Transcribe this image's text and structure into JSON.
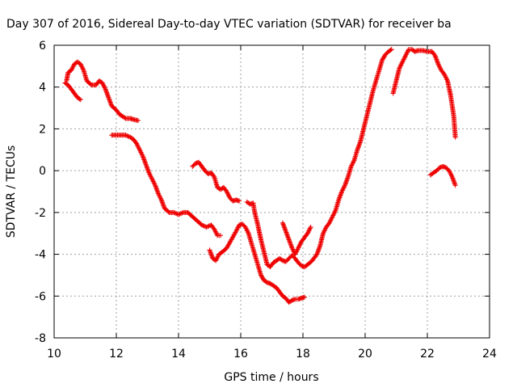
{
  "chart_data": {
    "type": "scatter",
    "title": "Day 307 of 2016, Sidereal Day-to-day VTEC variation (SDTVAR) for receiver ba",
    "xlabel": "GPS time / hours",
    "ylabel": "SDTVAR / TECUs",
    "xlim": [
      10,
      24
    ],
    "ylim": [
      -8,
      6
    ],
    "xticks": [
      "10",
      "12",
      "14",
      "16",
      "18",
      "20",
      "22",
      "24"
    ],
    "yticks": [
      "6",
      "4",
      "2",
      "0",
      "-2",
      "-4",
      "-6",
      "-8"
    ],
    "grid": true,
    "marker": "plus",
    "color": "#ee0000",
    "series": [
      {
        "name": "seg1",
        "points": [
          [
            10.4,
            4.3
          ],
          [
            10.45,
            4.7
          ],
          [
            10.55,
            4.8
          ],
          [
            10.65,
            5.1
          ],
          [
            10.75,
            5.2
          ],
          [
            10.85,
            5.1
          ],
          [
            10.95,
            4.8
          ],
          [
            11.05,
            4.3
          ],
          [
            11.2,
            4.1
          ],
          [
            11.35,
            4.1
          ],
          [
            11.45,
            4.3
          ],
          [
            11.55,
            4.2
          ],
          [
            11.65,
            3.9
          ],
          [
            11.75,
            3.5
          ],
          [
            11.85,
            3.1
          ],
          [
            12.0,
            2.9
          ],
          [
            12.1,
            2.7
          ],
          [
            12.2,
            2.6
          ],
          [
            12.3,
            2.5
          ],
          [
            12.45,
            2.5
          ],
          [
            12.55,
            2.45
          ],
          [
            12.7,
            2.4
          ]
        ]
      },
      {
        "name": "seg2",
        "points": [
          [
            10.35,
            4.2
          ],
          [
            10.45,
            4.1
          ],
          [
            10.55,
            3.9
          ],
          [
            10.65,
            3.7
          ],
          [
            10.75,
            3.5
          ],
          [
            10.85,
            3.4
          ]
        ]
      },
      {
        "name": "seg3",
        "points": [
          [
            11.85,
            1.7
          ],
          [
            12.0,
            1.7
          ],
          [
            12.15,
            1.7
          ],
          [
            12.3,
            1.7
          ],
          [
            12.45,
            1.6
          ],
          [
            12.55,
            1.5
          ],
          [
            12.65,
            1.3
          ],
          [
            12.75,
            1.0
          ],
          [
            12.85,
            0.7
          ],
          [
            12.95,
            0.3
          ],
          [
            13.05,
            -0.1
          ],
          [
            13.15,
            -0.4
          ],
          [
            13.25,
            -0.7
          ],
          [
            13.35,
            -1.1
          ],
          [
            13.45,
            -1.4
          ],
          [
            13.55,
            -1.8
          ],
          [
            13.7,
            -2.0
          ],
          [
            13.85,
            -2.0
          ],
          [
            14.0,
            -2.1
          ],
          [
            14.15,
            -2.0
          ],
          [
            14.3,
            -2.0
          ],
          [
            14.45,
            -2.2
          ],
          [
            14.6,
            -2.4
          ],
          [
            14.75,
            -2.6
          ],
          [
            14.9,
            -2.7
          ],
          [
            15.05,
            -2.6
          ],
          [
            15.15,
            -2.8
          ],
          [
            15.25,
            -3.1
          ],
          [
            15.35,
            -3.1
          ]
        ]
      },
      {
        "name": "seg4",
        "points": [
          [
            14.45,
            0.2
          ],
          [
            14.55,
            0.35
          ],
          [
            14.65,
            0.4
          ],
          [
            14.75,
            0.2
          ],
          [
            14.85,
            0.0
          ],
          [
            14.95,
            -0.15
          ],
          [
            15.05,
            -0.1
          ],
          [
            15.15,
            -0.3
          ],
          [
            15.25,
            -0.8
          ],
          [
            15.35,
            -0.9
          ],
          [
            15.45,
            -0.8
          ],
          [
            15.55,
            -1.0
          ],
          [
            15.65,
            -1.3
          ],
          [
            15.75,
            -1.45
          ],
          [
            15.85,
            -1.4
          ],
          [
            15.95,
            -1.45
          ]
        ]
      },
      {
        "name": "seg5",
        "points": [
          [
            15.0,
            -3.8
          ],
          [
            15.1,
            -4.2
          ],
          [
            15.2,
            -4.3
          ],
          [
            15.3,
            -4.0
          ],
          [
            15.4,
            -3.9
          ],
          [
            15.55,
            -3.7
          ],
          [
            15.7,
            -3.3
          ],
          [
            15.85,
            -2.9
          ],
          [
            15.95,
            -2.6
          ],
          [
            16.05,
            -2.55
          ],
          [
            16.15,
            -2.7
          ],
          [
            16.25,
            -3.0
          ],
          [
            16.35,
            -3.5
          ],
          [
            16.45,
            -4.0
          ],
          [
            16.55,
            -4.5
          ],
          [
            16.65,
            -5.0
          ],
          [
            16.75,
            -5.25
          ],
          [
            16.85,
            -5.35
          ],
          [
            16.95,
            -5.4
          ],
          [
            17.05,
            -5.5
          ],
          [
            17.15,
            -5.6
          ],
          [
            17.25,
            -5.8
          ],
          [
            17.35,
            -6.0
          ],
          [
            17.45,
            -6.1
          ],
          [
            17.55,
            -6.3
          ],
          [
            17.65,
            -6.2
          ],
          [
            17.75,
            -6.15
          ],
          [
            17.85,
            -6.15
          ],
          [
            17.95,
            -6.1
          ],
          [
            18.05,
            -6.05
          ]
        ]
      },
      {
        "name": "seg6",
        "points": [
          [
            16.2,
            -1.5
          ],
          [
            16.3,
            -1.6
          ],
          [
            16.4,
            -1.55
          ],
          [
            16.45,
            -2.0
          ],
          [
            16.55,
            -2.6
          ],
          [
            16.65,
            -3.3
          ],
          [
            16.75,
            -3.9
          ],
          [
            16.85,
            -4.5
          ],
          [
            16.95,
            -4.6
          ],
          [
            17.05,
            -4.4
          ],
          [
            17.15,
            -4.3
          ],
          [
            17.25,
            -4.2
          ],
          [
            17.35,
            -4.3
          ],
          [
            17.45,
            -4.35
          ],
          [
            17.55,
            -4.2
          ],
          [
            17.65,
            -4.05
          ],
          [
            17.75,
            -4.2
          ],
          [
            17.85,
            -4.4
          ],
          [
            17.95,
            -4.55
          ],
          [
            18.05,
            -4.6
          ],
          [
            18.15,
            -4.5
          ],
          [
            18.3,
            -4.3
          ],
          [
            18.45,
            -4.0
          ],
          [
            18.55,
            -3.6
          ],
          [
            18.65,
            -3.0
          ],
          [
            18.75,
            -2.7
          ],
          [
            18.85,
            -2.5
          ],
          [
            18.95,
            -2.2
          ],
          [
            19.05,
            -1.9
          ],
          [
            19.15,
            -1.4
          ],
          [
            19.25,
            -1.0
          ],
          [
            19.35,
            -0.7
          ],
          [
            19.45,
            -0.3
          ],
          [
            19.55,
            0.2
          ],
          [
            19.65,
            0.5
          ],
          [
            19.75,
            1.0
          ],
          [
            19.85,
            1.4
          ],
          [
            19.95,
            2.0
          ],
          [
            20.05,
            2.6
          ],
          [
            20.15,
            3.2
          ],
          [
            20.25,
            3.8
          ],
          [
            20.35,
            4.3
          ],
          [
            20.45,
            4.8
          ],
          [
            20.55,
            5.3
          ],
          [
            20.65,
            5.55
          ],
          [
            20.75,
            5.7
          ],
          [
            20.85,
            5.8
          ]
        ]
      },
      {
        "name": "seg7",
        "points": [
          [
            17.35,
            -2.5
          ],
          [
            17.45,
            -2.9
          ],
          [
            17.55,
            -3.3
          ],
          [
            17.65,
            -3.7
          ],
          [
            17.75,
            -4.0
          ],
          [
            17.85,
            -3.7
          ],
          [
            17.95,
            -3.4
          ],
          [
            18.05,
            -3.2
          ],
          [
            18.15,
            -3.0
          ],
          [
            18.25,
            -2.7
          ]
        ]
      },
      {
        "name": "seg8",
        "points": [
          [
            20.9,
            3.7
          ],
          [
            21.0,
            4.3
          ],
          [
            21.1,
            4.9
          ],
          [
            21.2,
            5.2
          ],
          [
            21.3,
            5.5
          ],
          [
            21.4,
            5.8
          ],
          [
            21.5,
            5.8
          ],
          [
            21.6,
            5.7
          ],
          [
            21.7,
            5.75
          ],
          [
            21.85,
            5.75
          ],
          [
            22.0,
            5.7
          ],
          [
            22.15,
            5.7
          ],
          [
            22.25,
            5.5
          ],
          [
            22.35,
            5.1
          ],
          [
            22.45,
            4.8
          ],
          [
            22.55,
            4.6
          ],
          [
            22.65,
            4.3
          ],
          [
            22.75,
            3.6
          ],
          [
            22.85,
            2.6
          ],
          [
            22.9,
            1.6
          ]
        ]
      },
      {
        "name": "seg9",
        "points": [
          [
            22.1,
            -0.2
          ],
          [
            22.2,
            -0.1
          ],
          [
            22.3,
            0.0
          ],
          [
            22.4,
            0.15
          ],
          [
            22.5,
            0.2
          ],
          [
            22.6,
            0.15
          ],
          [
            22.7,
            0.0
          ],
          [
            22.8,
            -0.3
          ],
          [
            22.9,
            -0.7
          ]
        ]
      }
    ]
  }
}
